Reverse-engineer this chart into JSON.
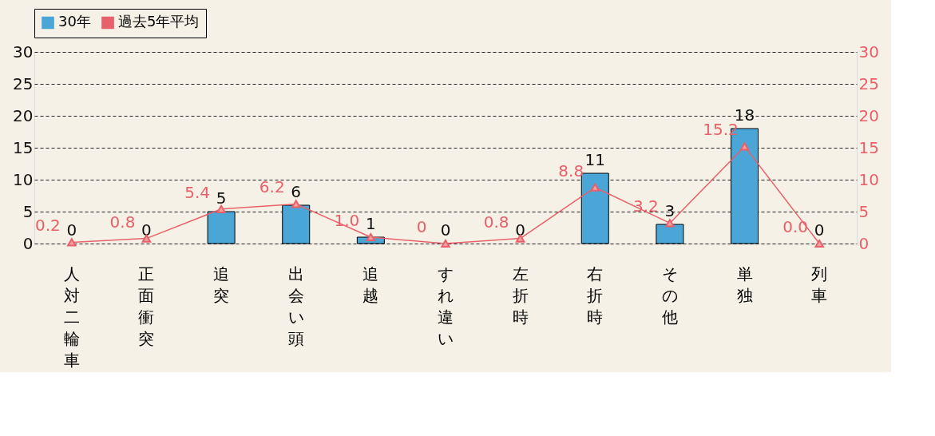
{
  "chart_data": {
    "type": "bar",
    "categories": [
      "人対二輪車",
      "正面衝突",
      "追突",
      "出会い頭",
      "追越",
      "すれ違い",
      "左折時",
      "右折時",
      "その他",
      "単独",
      "列車"
    ],
    "series": [
      {
        "name": "30年",
        "color": "#4ba6d8",
        "values": [
          0,
          0,
          5,
          6,
          1,
          0,
          0,
          11,
          3,
          18,
          0
        ],
        "value_labels": [
          "0",
          "0",
          "5",
          "6",
          "1",
          "0",
          "0",
          "11",
          "3",
          "18",
          "0"
        ]
      },
      {
        "name": "過去5年平均",
        "type": "line",
        "axis": "y2",
        "color": "#e8606a",
        "marker": "triangle",
        "values": [
          0.2,
          0.8,
          5.4,
          6.2,
          1.0,
          0,
          0.8,
          8.8,
          3.2,
          15.2,
          0.0
        ],
        "value_labels": [
          "0.2",
          "0.8",
          "5.4",
          "6.2",
          "1.0",
          "0",
          "0.8",
          "8.8",
          "3.2",
          "15.2",
          "0.0"
        ]
      }
    ],
    "ylim": [
      0,
      30
    ],
    "yticks": [
      0,
      5,
      10,
      15,
      20,
      25,
      30
    ],
    "y2lim": [
      0,
      30
    ],
    "y2ticks": [
      0,
      5,
      10,
      15,
      20,
      25,
      30
    ],
    "grid": "y",
    "legend": "top"
  }
}
